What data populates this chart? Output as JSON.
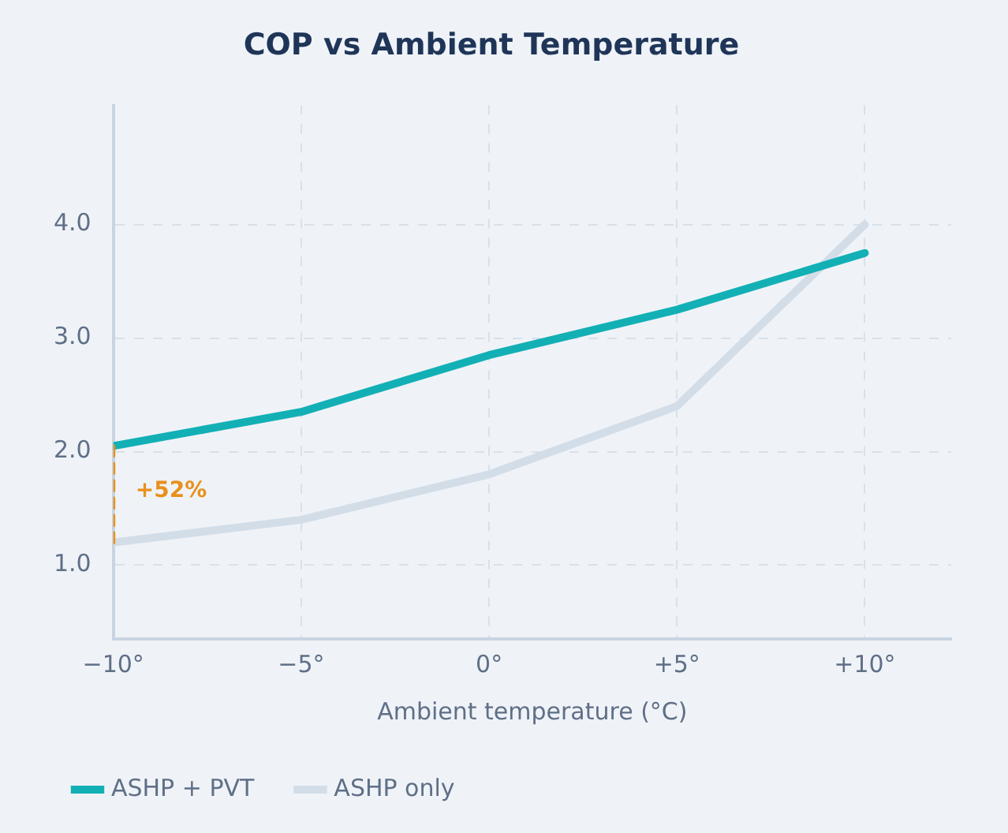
{
  "chart_data": {
    "type": "line",
    "title": "COP vs Ambient Temperature",
    "xlabel": "Ambient temperature (°C)",
    "x": [
      -10,
      -5,
      0,
      5,
      10
    ],
    "series": [
      {
        "name": "ASHP only",
        "color": "#d3dde8",
        "values": [
          1.2,
          1.4,
          1.8,
          2.4,
          4.0
        ]
      },
      {
        "name": "ASHP + PVT",
        "color": "#12b0b5",
        "values": [
          2.05,
          2.35,
          2.85,
          3.25,
          3.75
        ]
      },
      {
        "type": "line",
        "color": "#e8901c",
        "line_style": "dashed",
        "x": [
          -10,
          -10
        ],
        "values": [
          1.2,
          2.05
        ]
      }
    ],
    "annotations": [
      {
        "text": "+52%",
        "x": -10,
        "y": 1.65
      }
    ],
    "xlim": [
      -10,
      12.3
    ],
    "xticks": [
      {
        "value": -10,
        "label": "−10°"
      },
      {
        "value": -5,
        "label": "−5°"
      },
      {
        "value": 0,
        "label": "0°"
      },
      {
        "value": 5,
        "label": "+5°"
      },
      {
        "value": 10,
        "label": "+10°"
      }
    ],
    "ylim": [
      0.35,
      5.05
    ],
    "yticks": [
      {
        "value": 1,
        "label": "1.0"
      },
      {
        "value": 2,
        "label": "2.0"
      },
      {
        "value": 3,
        "label": "3.0"
      },
      {
        "value": 4,
        "label": "4.0"
      }
    ],
    "grid": true,
    "legend": "bottom",
    "marker": "none"
  }
}
